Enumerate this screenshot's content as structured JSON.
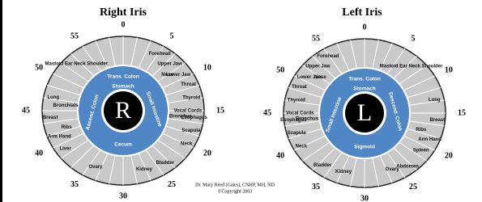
{
  "irises": [
    {
      "title": "Right Iris",
      "letter": "R",
      "clock": [
        "0",
        "5",
        "10",
        "15",
        "20",
        "25",
        "30",
        "35",
        "40",
        "45",
        "50",
        "55"
      ],
      "inner": [
        "Trans. Colon",
        "Stomach",
        "Ascend. Colon",
        "Small Intestine",
        "Cecum"
      ],
      "zones": [
        "Mastoid Ear Neck Shoulder",
        "Lung",
        "Breast",
        "Ribs",
        "Bronchials",
        "Arm Hand",
        "Liver",
        "Ovary",
        "Kidney",
        "Bladder",
        "Neck",
        "Scapula",
        "Bronchus",
        "Esophagus",
        "Vocal Cords",
        "Thyroid",
        "Throat",
        "Lower Jaw",
        "Nose",
        "Upper Jaw",
        "Forehead"
      ]
    },
    {
      "title": "Left Iris",
      "letter": "L",
      "clock": [
        "0",
        "5",
        "10",
        "15",
        "20",
        "25",
        "30",
        "35",
        "40",
        "45",
        "50",
        "55"
      ],
      "inner": [
        "Trans. Colon",
        "Stomach",
        "Descend. Colon",
        "Small Intestine",
        "Sigmoid"
      ],
      "zones": [
        "Forehead",
        "Upper Jaw",
        "Nose",
        "Lower Jaw",
        "Throat",
        "Thyroid",
        "Vocal Cords",
        "Esophagus",
        "Bronchus",
        "Scapula",
        "Neck",
        "Bladder",
        "Kidney",
        "Ovary",
        "Abdomen",
        "Spleen",
        "Arm Hand",
        "Ribs",
        "Breast",
        "Lung",
        "Mastoid Ear Neck Shoulder"
      ]
    }
  ],
  "credit": [
    "Dr. Mary Reed (Gates), CNHP, MH, ND",
    "©Copyright 2003"
  ]
}
